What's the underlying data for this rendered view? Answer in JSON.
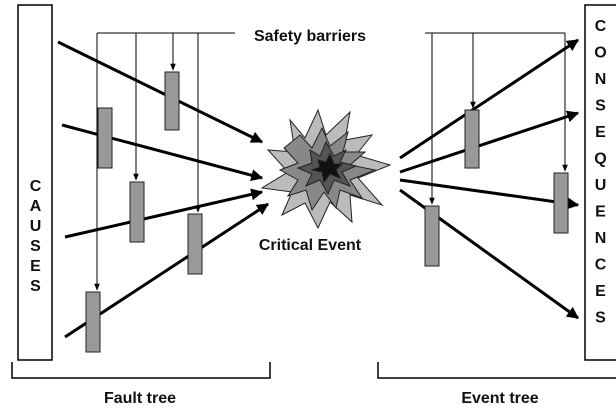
{
  "causes": "CAUSES",
  "consequences": "CONSEQUENCES",
  "safety_barriers": "Safety barriers",
  "critical_event": "Critical Event",
  "fault_tree": "Fault tree",
  "event_tree": "Event tree"
}
